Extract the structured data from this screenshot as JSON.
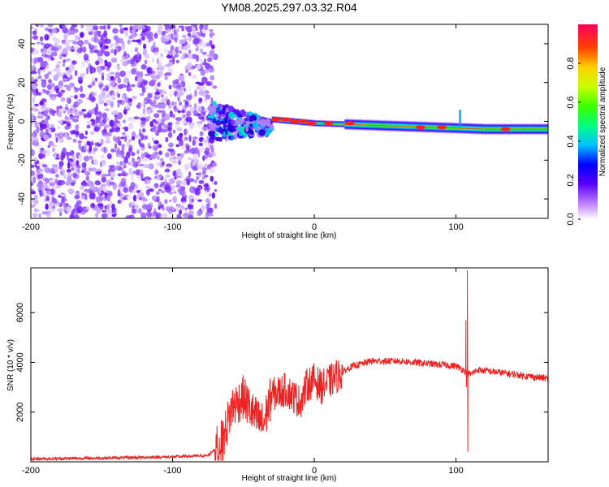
{
  "chart_data": [
    {
      "type": "heatmap",
      "title": "YM08.2025.297.03.32.R04",
      "xlabel": "Height of straight line (km)",
      "ylabel": "Frequency (Hz)",
      "xlim": [
        -200,
        165
      ],
      "ylim": [
        -50,
        50
      ],
      "x_ticks": [
        -200,
        -100,
        0,
        100
      ],
      "y_ticks": [
        -40,
        -20,
        0,
        20,
        40
      ],
      "colorbar": {
        "label": "Normalized spectral amplitude",
        "range": [
          0,
          1
        ],
        "ticks": [
          "0.0",
          "0.2",
          "0.4",
          "0.6",
          "0.8"
        ]
      },
      "features": [
        {
          "name": "noise",
          "x_range": [
            -200,
            -73
          ],
          "freq_range": [
            -50,
            50
          ],
          "level": "low"
        },
        {
          "name": "signal_onset",
          "x_range": [
            -73,
            -30
          ],
          "freq_center": 0,
          "freq_spread": 20
        },
        {
          "name": "carrier",
          "points": [
            [
              -30,
              1
            ],
            [
              0,
              -1
            ],
            [
              40,
              -2
            ],
            [
              80,
              -3
            ],
            [
              120,
              -4
            ],
            [
              165,
              -4
            ]
          ],
          "peak_amplitude": 1.0
        }
      ]
    },
    {
      "type": "line",
      "xlabel": "Height of straight line (km)",
      "ylabel": "SNR (10 * v/v)",
      "xlim": [
        -200,
        165
      ],
      "ylim": [
        0,
        7800
      ],
      "x_ticks": [
        -200,
        -100,
        0,
        100
      ],
      "y_ticks": [
        2000,
        4000,
        6000
      ],
      "series": [
        {
          "name": "SNR",
          "color": "#ee2222",
          "envelope": [
            [
              -200,
              120
            ],
            [
              -150,
              150
            ],
            [
              -100,
              200
            ],
            [
              -75,
              250
            ],
            [
              -65,
              800
            ],
            [
              -58,
              2200
            ],
            [
              -50,
              2600
            ],
            [
              -42,
              1800
            ],
            [
              -36,
              1500
            ],
            [
              -30,
              2700
            ],
            [
              -20,
              2900
            ],
            [
              -10,
              2400
            ],
            [
              -5,
              3100
            ],
            [
              0,
              3300
            ],
            [
              5,
              3000
            ],
            [
              15,
              3400
            ],
            [
              25,
              3800
            ],
            [
              40,
              4050
            ],
            [
              60,
              4050
            ],
            [
              80,
              3950
            ],
            [
              100,
              3850
            ],
            [
              105,
              3700
            ],
            [
              108,
              3600
            ],
            [
              110,
              3500
            ],
            [
              115,
              3700
            ],
            [
              130,
              3600
            ],
            [
              150,
              3450
            ],
            [
              165,
              3350
            ]
          ],
          "spikes": [
            {
              "x": 108,
              "min": 400,
              "max": 7700
            },
            {
              "x": 107,
              "min": 3000,
              "max": 5700
            }
          ]
        }
      ]
    }
  ]
}
